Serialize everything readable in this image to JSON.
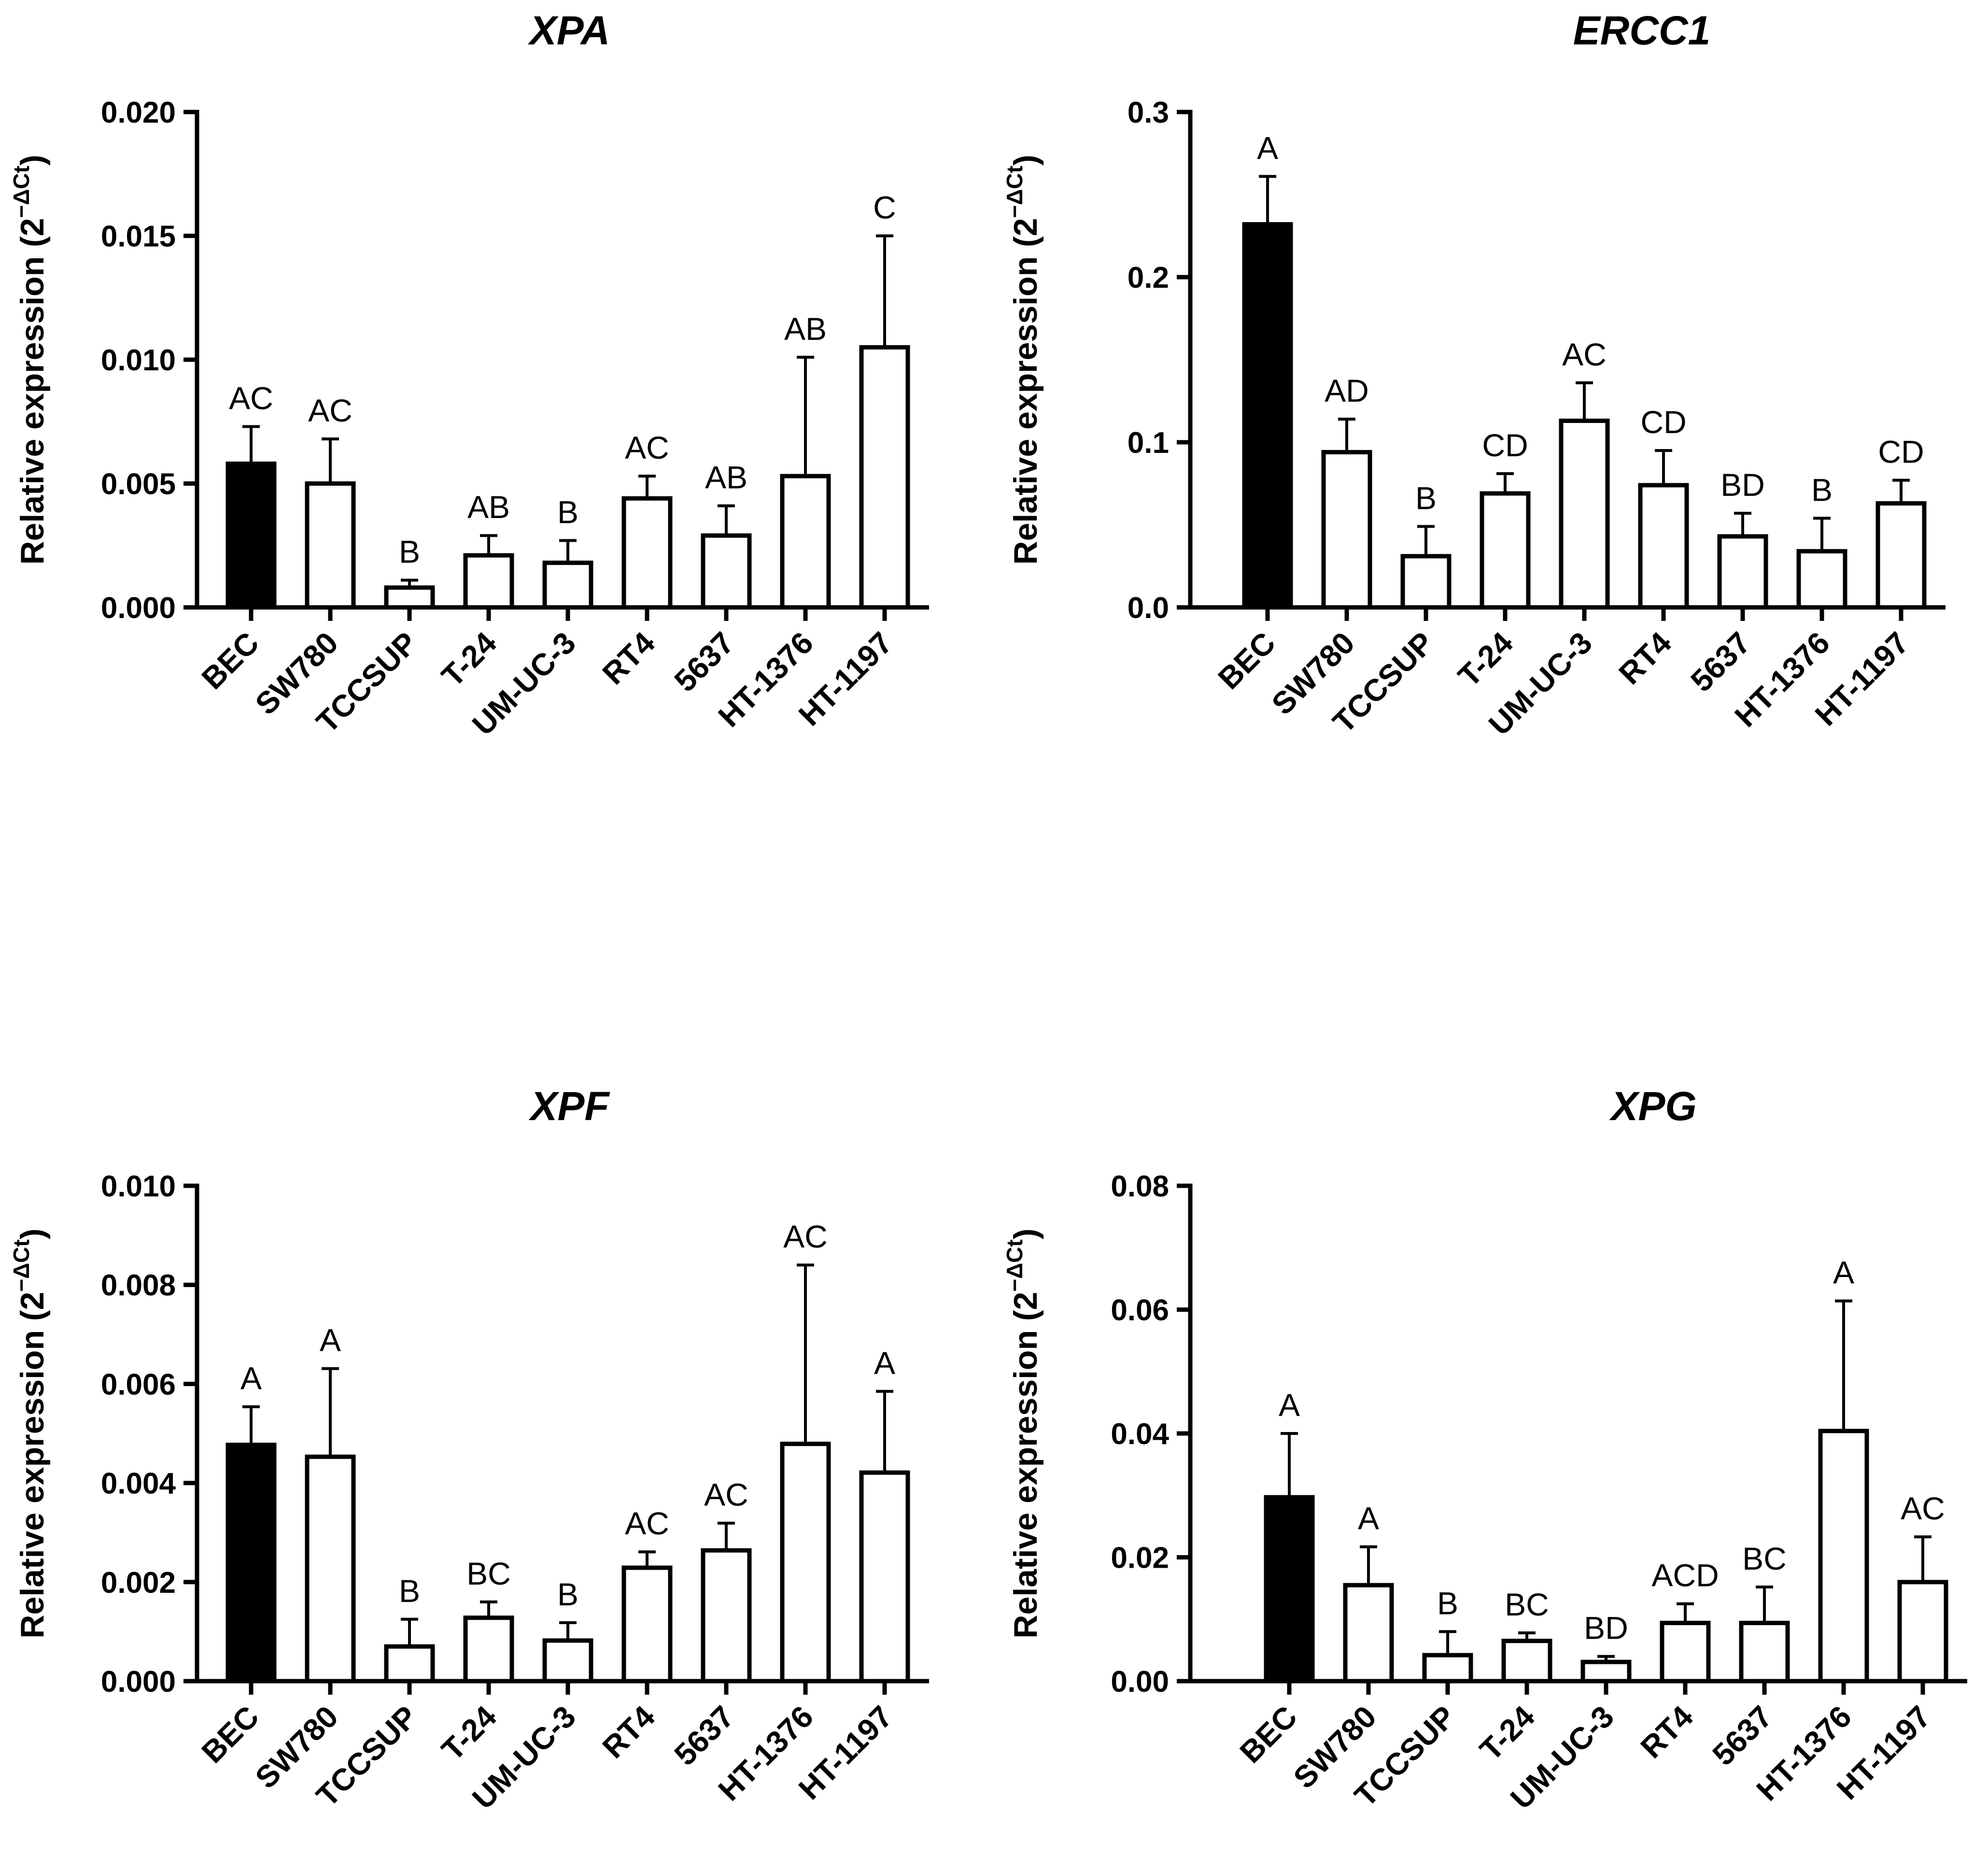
{
  "figure": {
    "categories": [
      "BEC",
      "SW780",
      "TCCSUP",
      "T-24",
      "UM-UC-3",
      "RT4",
      "5637",
      "HT-1376",
      "HT-1197"
    ],
    "ylabel_main": "Relative expression (2",
    "ylabel_sup": "−ΔCt",
    "ylabel_close": ")",
    "bar_colors": {
      "reference": "#000000",
      "other": "#ffffff",
      "stroke": "#000000"
    }
  },
  "chart_data": [
    {
      "type": "bar",
      "title": "XPA",
      "ylim": [
        0,
        0.02
      ],
      "yticks": [
        "0.000",
        "0.005",
        "0.010",
        "0.015",
        "0.020"
      ],
      "ytick_values": [
        0,
        0.005,
        0.01,
        0.015,
        0.02
      ],
      "values": [
        0.0058,
        0.005,
        0.0008,
        0.0021,
        0.0018,
        0.0044,
        0.0029,
        0.0053,
        0.0105
      ],
      "errors": [
        0.0015,
        0.0018,
        0.0003,
        0.0008,
        0.0009,
        0.0009,
        0.0012,
        0.0048,
        0.0045
      ],
      "annotations": [
        "AC",
        "AC",
        "B",
        "AB",
        "B",
        "AC",
        "AB",
        "AB",
        "C"
      ]
    },
    {
      "type": "bar",
      "title": "ERCC1",
      "ylim": [
        0,
        0.3
      ],
      "yticks": [
        "0.0",
        "0.1",
        "0.2",
        "0.3"
      ],
      "ytick_values": [
        0,
        0.1,
        0.2,
        0.3
      ],
      "values": [
        0.232,
        0.094,
        0.031,
        0.069,
        0.113,
        0.074,
        0.043,
        0.034,
        0.063
      ],
      "errors": [
        0.029,
        0.02,
        0.018,
        0.012,
        0.023,
        0.021,
        0.014,
        0.02,
        0.014
      ],
      "annotations": [
        "A",
        "AD",
        "B",
        "CD",
        "AC",
        "CD",
        "BD",
        "B",
        "CD"
      ]
    },
    {
      "type": "bar",
      "title": "XPF",
      "ylim": [
        0,
        0.01
      ],
      "yticks": [
        "0.000",
        "0.002",
        "0.004",
        "0.006",
        "0.008",
        "0.010"
      ],
      "ytick_values": [
        0,
        0.002,
        0.004,
        0.006,
        0.008,
        0.01
      ],
      "values": [
        0.00477,
        0.00453,
        0.0007,
        0.00128,
        0.00082,
        0.00229,
        0.00264,
        0.00479,
        0.00421
      ],
      "errors": [
        0.00077,
        0.00178,
        0.00055,
        0.00032,
        0.00036,
        0.00032,
        0.00055,
        0.00361,
        0.00164
      ],
      "annotations": [
        "A",
        "A",
        "B",
        "BC",
        "B",
        "AC",
        "AC",
        "AC",
        "A"
      ]
    },
    {
      "type": "bar",
      "title": "XPG",
      "ylim": [
        0,
        0.08
      ],
      "yticks": [
        "0.00",
        "0.02",
        "0.04",
        "0.06",
        "0.08"
      ],
      "ytick_values": [
        0,
        0.02,
        0.04,
        0.06,
        0.08
      ],
      "values": [
        0.0297,
        0.0155,
        0.0042,
        0.0065,
        0.0031,
        0.0094,
        0.0094,
        0.0404,
        0.016
      ],
      "errors": [
        0.0103,
        0.0062,
        0.0038,
        0.0013,
        0.0009,
        0.0031,
        0.0058,
        0.021,
        0.0073
      ],
      "annotations": [
        "A",
        "A",
        "B",
        "BC",
        "BD",
        "ACD",
        "BC",
        "A",
        "AC"
      ]
    }
  ]
}
